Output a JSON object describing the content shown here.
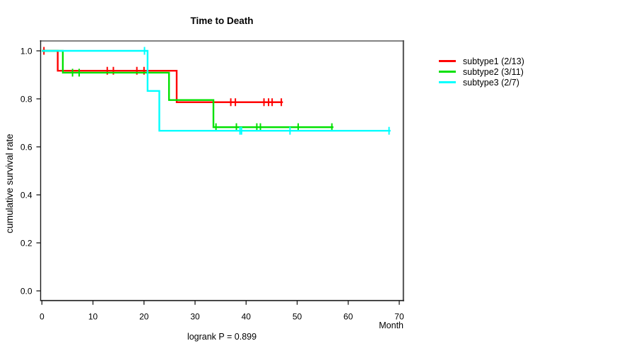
{
  "chart_data": {
    "type": "line",
    "variant": "kaplan-meier-step",
    "title": "Time to Death",
    "xlabel": "Month",
    "ylabel": "cumulative survival rate",
    "annotation": "logrank P = 0.899",
    "xlim": [
      0,
      70
    ],
    "ylim": [
      0.0,
      1.0
    ],
    "xticks": [
      0,
      10,
      20,
      30,
      40,
      50,
      60,
      70
    ],
    "yticks": [
      "0.0",
      "0.2",
      "0.4",
      "0.6",
      "0.8",
      "1.0"
    ],
    "grid": false,
    "legend_position": "right-outside",
    "series": [
      {
        "name": "subtype1 (2/13)",
        "events": 2,
        "n": 13,
        "color": "#ff0000",
        "steps": [
          [
            0,
            1.0
          ],
          [
            3.1,
            1.0
          ],
          [
            3.1,
            0.917
          ],
          [
            26.4,
            0.917
          ],
          [
            26.4,
            0.786
          ],
          [
            47.2,
            0.786
          ]
        ],
        "censor_marks": [
          [
            0.4,
            1.0
          ],
          [
            12.8,
            0.917
          ],
          [
            14.0,
            0.917
          ],
          [
            18.6,
            0.917
          ],
          [
            20.0,
            0.917
          ],
          [
            37.0,
            0.786
          ],
          [
            37.9,
            0.786
          ],
          [
            43.5,
            0.786
          ],
          [
            44.4,
            0.786
          ],
          [
            45.1,
            0.786
          ],
          [
            46.9,
            0.786
          ]
        ]
      },
      {
        "name": "subtype2 (3/11)",
        "events": 3,
        "n": 11,
        "color": "#00e100",
        "steps": [
          [
            0,
            1.0
          ],
          [
            4.1,
            1.0
          ],
          [
            4.1,
            0.909
          ],
          [
            24.9,
            0.909
          ],
          [
            24.9,
            0.795
          ],
          [
            33.6,
            0.795
          ],
          [
            33.6,
            0.682
          ],
          [
            57.1,
            0.682
          ]
        ],
        "censor_marks": [
          [
            6.0,
            0.909
          ],
          [
            7.3,
            0.909
          ],
          [
            34.1,
            0.682
          ],
          [
            38.1,
            0.682
          ],
          [
            42.1,
            0.682
          ],
          [
            42.8,
            0.682
          ],
          [
            50.2,
            0.682
          ],
          [
            56.8,
            0.682
          ]
        ]
      },
      {
        "name": "subtype3 (2/7)",
        "events": 2,
        "n": 7,
        "color": "#00ffff",
        "steps": [
          [
            0,
            1.0
          ],
          [
            20.7,
            1.0
          ],
          [
            20.7,
            0.833
          ],
          [
            23.0,
            0.833
          ],
          [
            23.0,
            0.667
          ],
          [
            68.3,
            0.667
          ]
        ],
        "censor_marks": [
          [
            20.1,
            1.0
          ],
          [
            38.8,
            0.667
          ],
          [
            39.1,
            0.667
          ],
          [
            48.6,
            0.667
          ],
          [
            68.0,
            0.667
          ]
        ]
      }
    ]
  }
}
